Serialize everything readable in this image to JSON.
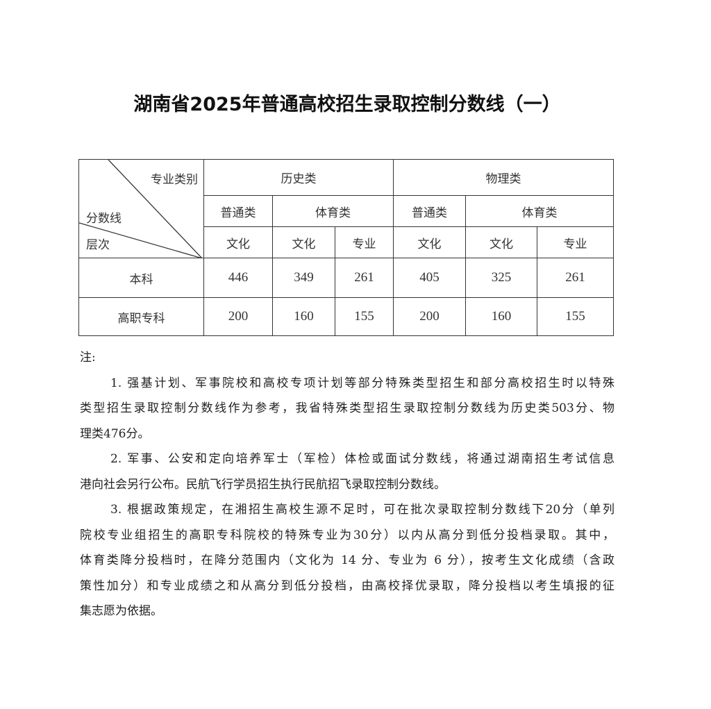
{
  "title": "湖南省2025年普通高校招生录取控制分数线（一）",
  "table": {
    "corner": {
      "top_right": "专业类别",
      "middle": "分数线",
      "bottom_left": "层次"
    },
    "groups": [
      "历史类",
      "物理类"
    ],
    "subgroups": [
      "普通类",
      "体育类",
      "普通类",
      "体育类"
    ],
    "subcols": [
      "文化",
      "文化",
      "专业",
      "文化",
      "文化",
      "专业"
    ],
    "rows": [
      {
        "label": "本科",
        "values": [
          "446",
          "349",
          "261",
          "405",
          "325",
          "261"
        ]
      },
      {
        "label": "高职专科",
        "values": [
          "200",
          "160",
          "155",
          "200",
          "160",
          "155"
        ]
      }
    ]
  },
  "notes": {
    "heading": "注:",
    "paragraphs": [
      [
        "1. 强基计划、军事院校和高校专项计划等部分特殊类型招生和部分高校招生时以特殊",
        "类型招生录取控制分数线作为参考，我省特殊类型招生录取控制分数线为历史类503分、物",
        "理类476分。"
      ],
      [
        "2. 军事、公安和定向培养军士（军检）体检或面试分数线，将通过湖南招生考试信息",
        "港向社会另行公布。民航飞行学员招生执行民航招飞录取控制分数线。"
      ],
      [
        "3. 根据政策规定，在湘招生高校生源不足时，可在批次录取控制分数线下20分（单列",
        "院校专业组招生的高职专科院校的特殊专业为30分）以内从高分到低分投档录取。其中，",
        "体育类降分投档时，在降分范围内（文化为 14 分、专业为 6 分），按考生文化成绩（含政",
        "策性加分）和专业成绩之和从高分到低分投档，由高校择优录取，降分投档以考生填报的征",
        "集志愿为依据。"
      ]
    ]
  }
}
